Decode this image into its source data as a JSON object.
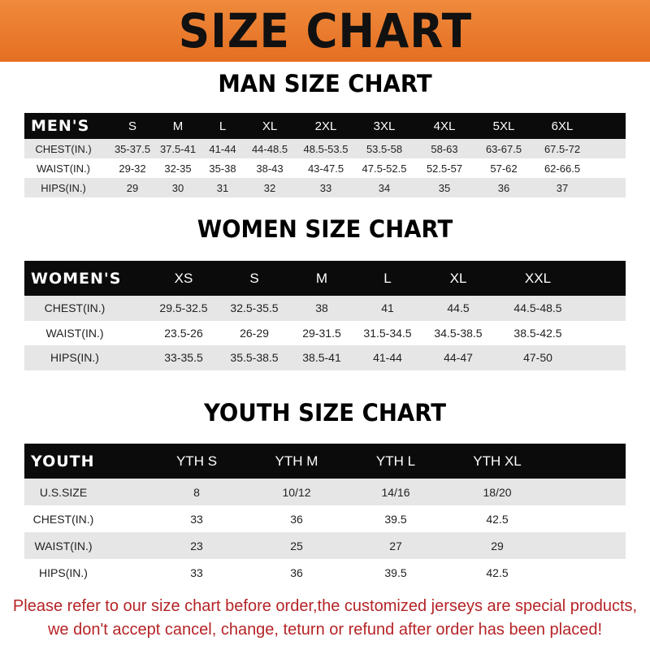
{
  "banner": {
    "title": "SIZE CHART"
  },
  "men": {
    "title": "MAN SIZE CHART",
    "header": [
      "MEN'S",
      "S",
      "M",
      "L",
      "XL",
      "2XL",
      "3XL",
      "4XL",
      "5XL",
      "6XL"
    ],
    "rows": [
      [
        "CHEST(IN.)",
        "35-37.5",
        "37.5-41",
        "41-44",
        "44-48.5",
        "48.5-53.5",
        "53.5-58",
        "58-63",
        "63-67.5",
        "67.5-72"
      ],
      [
        "WAIST(IN.)",
        "29-32",
        "32-35",
        "35-38",
        "38-43",
        "43-47.5",
        "47.5-52.5",
        "52.5-57",
        "57-62",
        "62-66.5"
      ],
      [
        "HIPS(IN.)",
        "29",
        "30",
        "31",
        "32",
        "33",
        "34",
        "35",
        "36",
        "37"
      ]
    ]
  },
  "women": {
    "title": "WOMEN SIZE CHART",
    "header": [
      "WOMEN'S",
      "XS",
      "S",
      "M",
      "L",
      "XL",
      "XXL"
    ],
    "rows": [
      [
        "CHEST(IN.)",
        "29.5-32.5",
        "32.5-35.5",
        "38",
        "41",
        "44.5",
        "44.5-48.5"
      ],
      [
        "WAIST(IN.)",
        "23.5-26",
        "26-29",
        "29-31.5",
        "31.5-34.5",
        "34.5-38.5",
        "38.5-42.5"
      ],
      [
        "HIPS(IN.)",
        "33-35.5",
        "35.5-38.5",
        "38.5-41",
        "41-44",
        "44-47",
        "47-50"
      ]
    ]
  },
  "youth": {
    "title": "YOUTH SIZE CHART",
    "header": [
      "YOUTH",
      "YTH S",
      "YTH M",
      "YTH L",
      "YTH XL"
    ],
    "rows": [
      [
        "U.S.SIZE",
        "8",
        "10/12",
        "14/16",
        "18/20"
      ],
      [
        "CHEST(IN.)",
        "33",
        "36",
        "39.5",
        "42.5"
      ],
      [
        "WAIST(IN.)",
        "23",
        "25",
        "27",
        "29"
      ],
      [
        "HIPS(IN.)",
        "33",
        "36",
        "39.5",
        "42.5"
      ]
    ]
  },
  "note": {
    "line1": "Please refer to our size chart before order,the customized jerseys are special products,",
    "line2": "we don't accept cancel, change, teturn or refund after order has been placed!"
  },
  "colors": {
    "banner": "#e8762a",
    "header_row": "#0b0b0b",
    "stripe": "#e6e6e6",
    "note": "#b52427"
  }
}
